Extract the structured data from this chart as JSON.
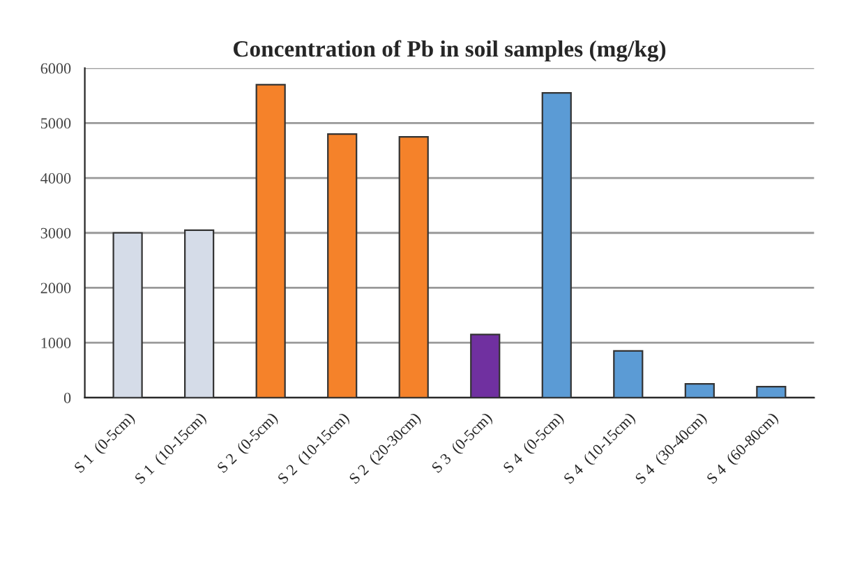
{
  "chart_data": {
    "type": "bar",
    "title": "Concentration of Pb in soil samples (mg/kg)",
    "categories": [
      "S 1  (0-5cm)",
      "S 1  (10-15cm)",
      "S 2  (0-5cm)",
      "S 2  (10-15cm)",
      "S 2  (20-30cm)",
      "S 3  (0-5cm)",
      "S 4  (0-5cm)",
      "S 4  (10-15cm)",
      "S 4  (30-40cm)",
      "S 4  (60-80cm)"
    ],
    "values": [
      3000,
      3050,
      5700,
      4800,
      4750,
      1150,
      5550,
      850,
      250,
      200
    ],
    "colors": [
      "#d5dce8",
      "#d5dce8",
      "#f5822a",
      "#f5822a",
      "#f5822a",
      "#7030a0",
      "#5b9bd5",
      "#5b9bd5",
      "#5b9bd5",
      "#5b9bd5"
    ],
    "ylim": [
      0,
      6000
    ],
    "yticks": [
      0,
      1000,
      2000,
      3000,
      4000,
      5000,
      6000
    ],
    "grid": "y"
  }
}
